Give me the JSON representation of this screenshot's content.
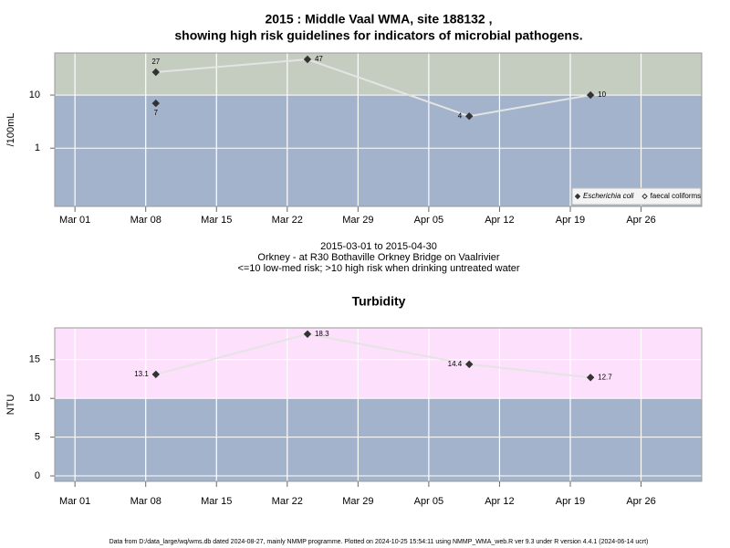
{
  "chart_data": [
    {
      "type": "line",
      "title": "2015 : Middle Vaal WMA, site 188132 ,",
      "subtitle": "showing high risk guidelines for indicators of microbial pathogens.",
      "y_label": "/100mL",
      "log_y": true,
      "x": [
        "2015-03-09",
        "2015-03-24",
        "2015-04-09",
        "2015-04-21"
      ],
      "series": [
        {
          "name": "Escherichia coli",
          "color": "#333333",
          "marker": "filled",
          "values": [
            27,
            47,
            4,
            10
          ]
        },
        {
          "name": "faecal coliforms",
          "color": "#333333",
          "marker": "open",
          "values": [
            7,
            null,
            null,
            null
          ]
        }
      ],
      "line_color": "#e4e4e4",
      "threshold": 10,
      "zone_colors": {
        "below": "#a3b3cb",
        "above": "#c5cdc1"
      },
      "xlim": [
        "2015-02-27",
        "2015-05-02"
      ],
      "xticks": [
        {
          "value": "2015-03-01",
          "label": "Mar 01"
        },
        {
          "value": "2015-03-08",
          "label": "Mar 08"
        },
        {
          "value": "2015-03-15",
          "label": "Mar 15"
        },
        {
          "value": "2015-03-22",
          "label": "Mar 22"
        },
        {
          "value": "2015-03-29",
          "label": "Mar 29"
        },
        {
          "value": "2015-04-05",
          "label": "Apr 05"
        },
        {
          "value": "2015-04-12",
          "label": "Apr 12"
        },
        {
          "value": "2015-04-19",
          "label": "Apr 19"
        },
        {
          "value": "2015-04-26",
          "label": "Apr 26"
        }
      ],
      "ylim": [
        0.08,
        62
      ],
      "yticks": [
        1,
        10
      ],
      "grid": true,
      "legend": "bottom-right"
    },
    {
      "type": "line",
      "title": "Turbidity",
      "y_label": "NTU",
      "log_y": false,
      "x": [
        "2015-03-09",
        "2015-03-24",
        "2015-04-09",
        "2015-04-21"
      ],
      "values": [
        13.1,
        18.3,
        14.4,
        12.7
      ],
      "color": "#333333",
      "line_color": "#e4e4e4",
      "threshold": 10,
      "zone_colors": {
        "below": "#a3b3cb",
        "above": "#fde0fb"
      },
      "xlim": [
        "2015-02-27",
        "2015-05-02"
      ],
      "xticks": [
        {
          "value": "2015-03-01",
          "label": "Mar 01"
        },
        {
          "value": "2015-03-08",
          "label": "Mar 08"
        },
        {
          "value": "2015-03-15",
          "label": "Mar 15"
        },
        {
          "value": "2015-03-22",
          "label": "Mar 22"
        },
        {
          "value": "2015-03-29",
          "label": "Mar 29"
        },
        {
          "value": "2015-04-05",
          "label": "Apr 05"
        },
        {
          "value": "2015-04-12",
          "label": "Apr 12"
        },
        {
          "value": "2015-04-19",
          "label": "Apr 19"
        },
        {
          "value": "2015-04-26",
          "label": "Apr 26"
        }
      ],
      "ylim": [
        -0.7,
        19.1
      ],
      "yticks": [
        0,
        5,
        10,
        15
      ],
      "grid": true
    }
  ],
  "caption": [
    "2015-03-01 to 2015-04-30",
    "Orkney - at R30 Bothaville Orkney Bridge on Vaalrivier",
    "<=10 low-med risk; >10 high risk when drinking untreated water"
  ],
  "footer": "Data from D:/data_large/wq/wms.db dated 2024-08-27, mainly NMMP programme. Plotted on 2024-10-25 15:54:11 using NMMP_WMA_web.R ver 9.3 under R version 4.4.1 (2024-06-14 ucrt)"
}
